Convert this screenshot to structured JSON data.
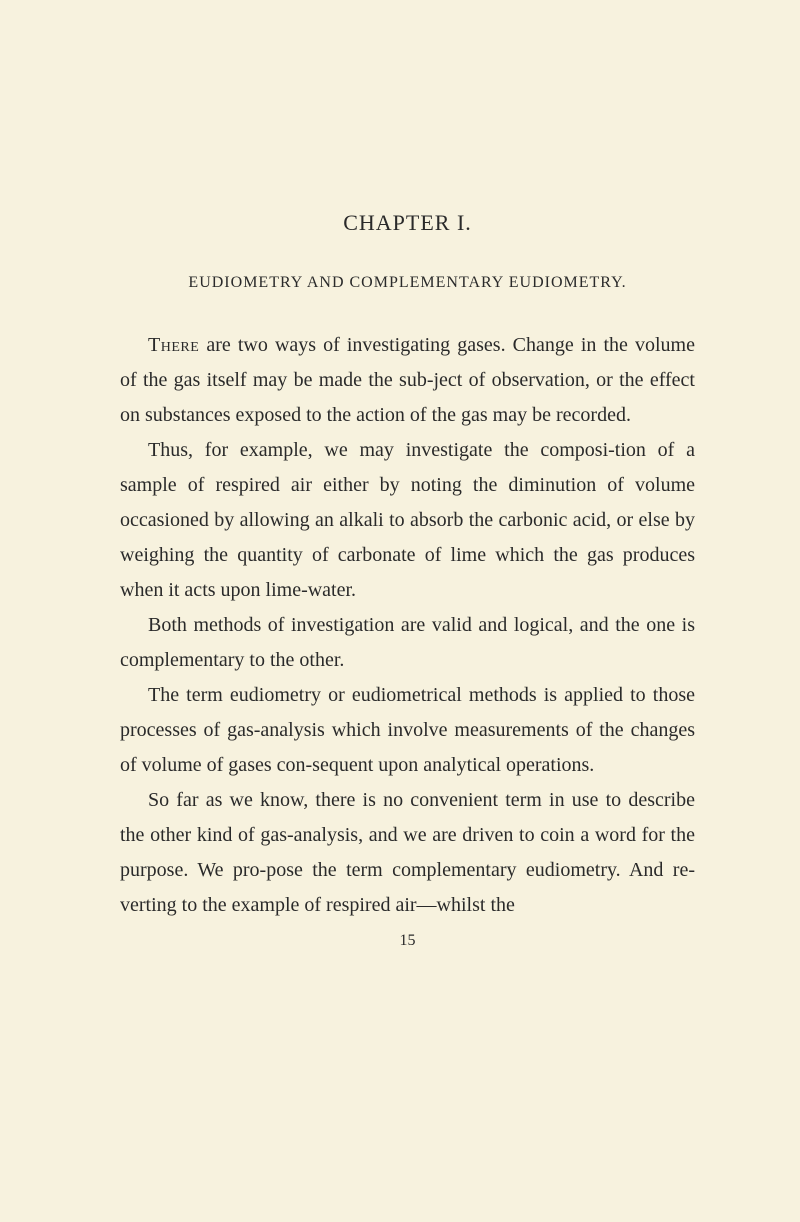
{
  "chapter": {
    "title": "CHAPTER I.",
    "subtitle": "EUDIOMETRY AND COMPLEMENTARY EUDIOMETRY.",
    "firstWord": "There",
    "p1_rest": " are two ways of investigating gases. Change in the volume of the gas itself may be made the sub-ject of observation, or the effect on substances exposed to the action of the gas may be recorded.",
    "p2": "Thus, for example, we may investigate the composi-tion of a sample of respired air either by noting the diminution of volume occasioned by allowing an alkali to absorb the carbonic acid, or else by weighing the quantity of carbonate of lime which the gas produces when it acts upon lime-water.",
    "p3": "Both methods of investigation are valid and logical, and the one is complementary to the other.",
    "p4": "The term eudiometry or eudiometrical methods is applied to those processes of gas-analysis which involve measurements of the changes of volume of gases con-sequent upon analytical operations.",
    "p5": "So far as we know, there is no convenient term in use to describe the other kind of gas-analysis, and we are driven to coin a word for the purpose. We pro-pose the term complementary eudiometry. And re-verting to the example of respired air—whilst the",
    "pageNumber": "15"
  },
  "style": {
    "background_color": "#f7f2de",
    "text_color": "#2a2a2a",
    "body_font_size": 20,
    "line_height": 1.75,
    "title_font_size": 22,
    "subtitle_font_size": 16
  }
}
